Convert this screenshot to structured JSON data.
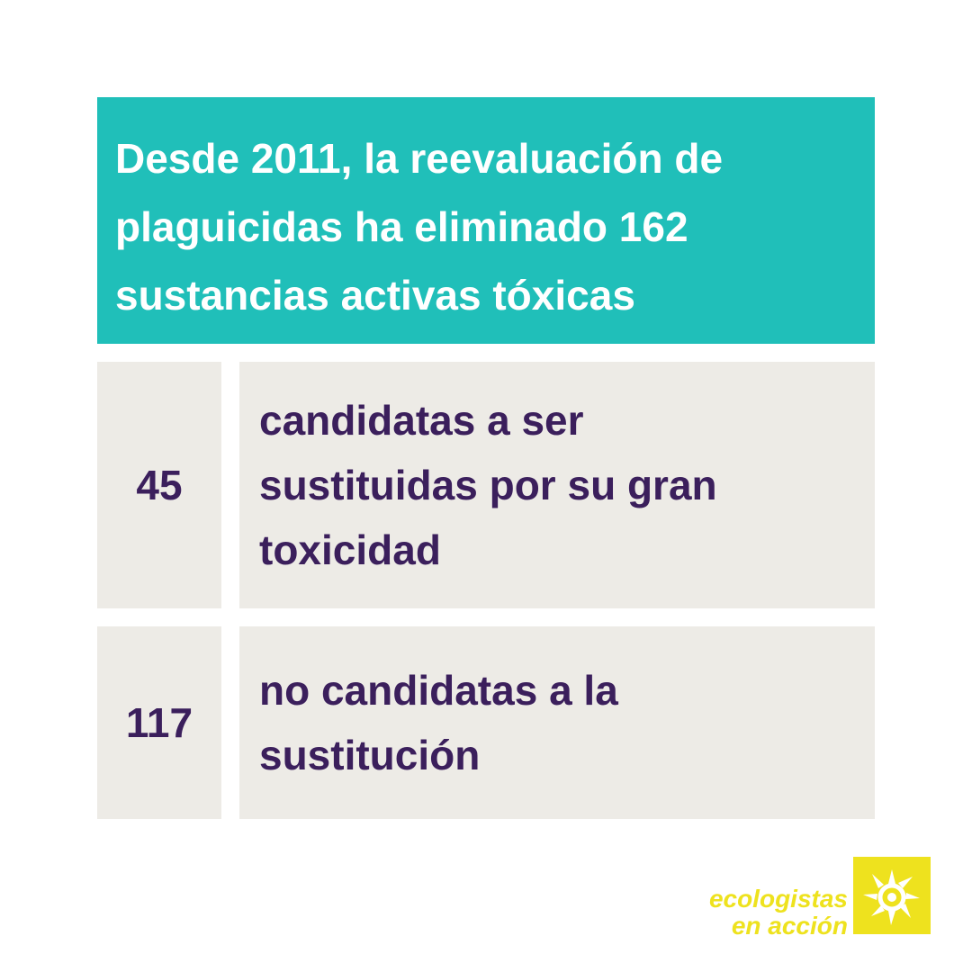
{
  "header": {
    "text": "Desde 2011, la reevaluación de\nplaguicidas ha eliminado 162\nsustancias activas tóxicas"
  },
  "rows": [
    {
      "number": "45",
      "description": "candidatas a ser\nsustituidas por su gran\ntoxicidad"
    },
    {
      "number": "117",
      "description": "no candidatas a la\nsustitución"
    }
  ],
  "logo": {
    "text": "ecologistas\nen acción",
    "icon": "sun-icon"
  },
  "colors": {
    "header_bg": "#20bfb9",
    "cell_bg": "#edebe6",
    "text_purple": "#3b1f5c",
    "logo_yellow": "#eee21e"
  }
}
